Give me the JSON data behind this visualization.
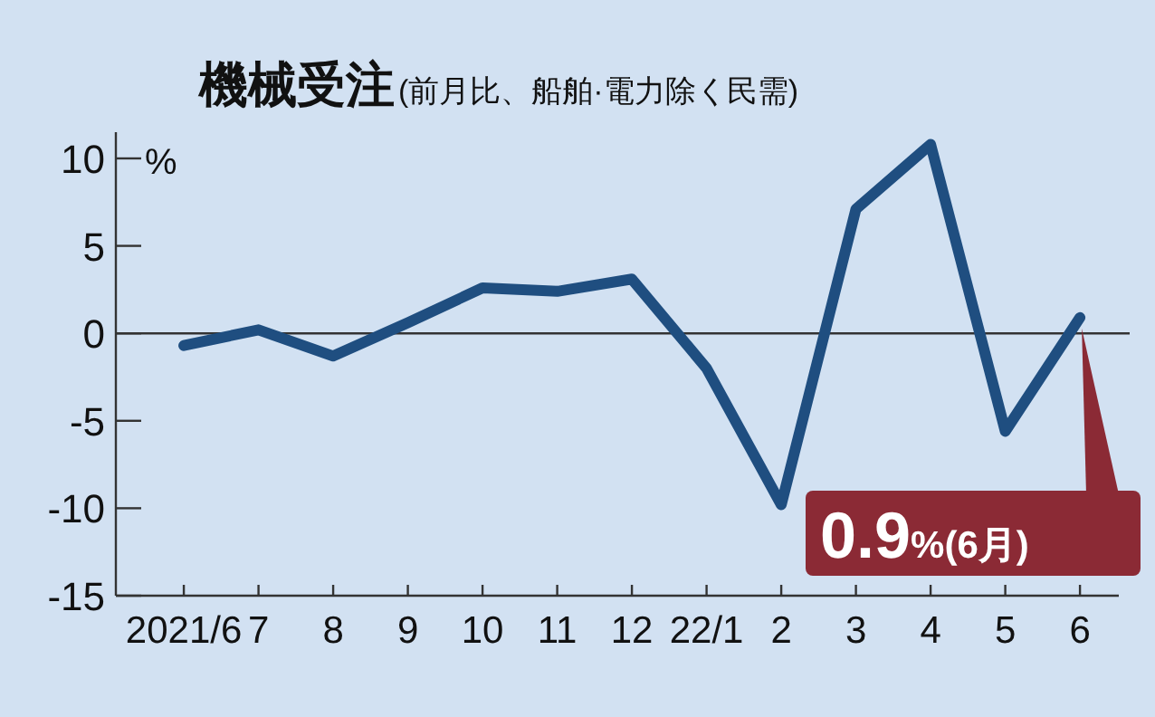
{
  "chart_data": {
    "type": "line",
    "title": "機械受注",
    "subtitle": "(前月比、船舶·電力除く民需)",
    "ylabel": "%",
    "categories": [
      "2021/6",
      "7",
      "8",
      "9",
      "10",
      "11",
      "12",
      "22/1",
      "2",
      "3",
      "4",
      "5",
      "6"
    ],
    "series": [
      {
        "color": "#1f4e80",
        "values": [
          -0.7,
          0.2,
          -1.3,
          0.6,
          2.6,
          2.4,
          3.1,
          -2.0,
          -9.8,
          7.1,
          10.8,
          -5.6,
          0.9
        ]
      }
    ],
    "ylim": [
      -15,
      11.5
    ],
    "yticks": [
      -15,
      -10,
      -5,
      0,
      5,
      10
    ],
    "ref_lines": [
      {
        "axis": "y",
        "value": 0,
        "color": "#333333"
      }
    ],
    "annotations": [
      {
        "text": "0.9%(6月)",
        "x": "6",
        "y": 0.9
      }
    ]
  }
}
